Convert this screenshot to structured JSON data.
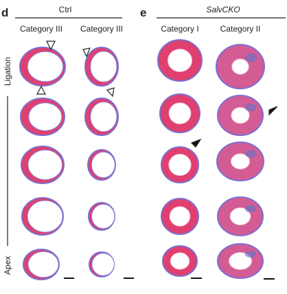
{
  "panel_d": {
    "label": "d",
    "group": "Ctrl",
    "columns": [
      "Category III",
      "Category III"
    ]
  },
  "panel_e": {
    "label": "e",
    "group": "SalvCKO",
    "columns": [
      "Category I",
      "Category II"
    ]
  },
  "axis": {
    "top": "Ligation",
    "bottom": "Apex"
  }
}
